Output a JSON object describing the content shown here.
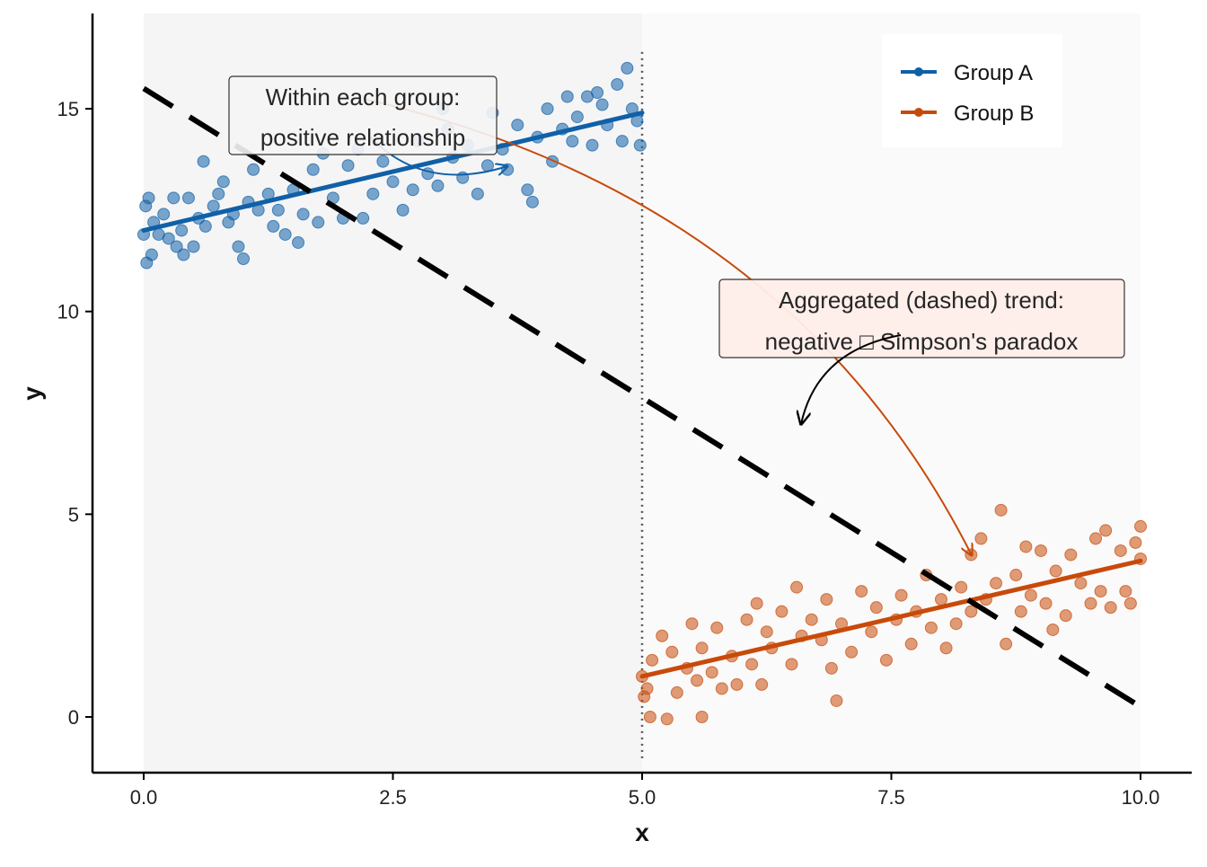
{
  "chart_data": {
    "type": "scatter",
    "title": "",
    "xlabel": "x",
    "ylabel": "y",
    "xlim": [
      -0.5,
      10.5
    ],
    "ylim": [
      -1.4,
      17.3
    ],
    "x_ticks": [
      0,
      2.5,
      5,
      7.5,
      10
    ],
    "x_tick_labels": [
      "0.0",
      "2.5",
      "5.0",
      "7.5",
      "10.0"
    ],
    "y_ticks": [
      0,
      5,
      10,
      15
    ],
    "y_tick_labels": [
      "0",
      "5",
      "10",
      "15"
    ],
    "grid": false,
    "legend_position": "top-right",
    "group_split_x": 5,
    "series": [
      {
        "name": "Group A",
        "color": "#1060a8",
        "fit": {
          "x": [
            0,
            5
          ],
          "y": [
            12.0,
            14.9
          ]
        },
        "points": [
          [
            0,
            11.9
          ],
          [
            0.02,
            12.6
          ],
          [
            0.03,
            11.2
          ],
          [
            0.05,
            12.8
          ],
          [
            0.08,
            11.4
          ],
          [
            0.1,
            12.2
          ],
          [
            0.15,
            11.9
          ],
          [
            0.2,
            12.4
          ],
          [
            0.25,
            11.8
          ],
          [
            0.3,
            12.8
          ],
          [
            0.33,
            11.6
          ],
          [
            0.38,
            12.0
          ],
          [
            0.4,
            11.4
          ],
          [
            0.45,
            12.8
          ],
          [
            0.5,
            11.6
          ],
          [
            0.55,
            12.3
          ],
          [
            0.6,
            13.7
          ],
          [
            0.62,
            12.1
          ],
          [
            0.7,
            12.6
          ],
          [
            0.75,
            12.9
          ],
          [
            0.8,
            13.2
          ],
          [
            0.85,
            12.2
          ],
          [
            0.9,
            12.4
          ],
          [
            0.95,
            11.6
          ],
          [
            1.0,
            11.3
          ],
          [
            1.05,
            12.7
          ],
          [
            1.1,
            13.5
          ],
          [
            1.15,
            12.5
          ],
          [
            1.25,
            12.9
          ],
          [
            1.3,
            12.1
          ],
          [
            1.35,
            12.5
          ],
          [
            1.42,
            11.9
          ],
          [
            1.5,
            13.0
          ],
          [
            1.55,
            11.7
          ],
          [
            1.6,
            12.4
          ],
          [
            1.7,
            13.5
          ],
          [
            1.75,
            12.2
          ],
          [
            1.8,
            13.9
          ],
          [
            1.9,
            12.8
          ],
          [
            2.0,
            12.3
          ],
          [
            2.05,
            13.6
          ],
          [
            2.15,
            14.0
          ],
          [
            2.2,
            12.3
          ],
          [
            2.3,
            12.9
          ],
          [
            2.4,
            13.7
          ],
          [
            2.5,
            13.2
          ],
          [
            2.6,
            12.5
          ],
          [
            2.7,
            13.0
          ],
          [
            2.75,
            14.2
          ],
          [
            2.85,
            13.4
          ],
          [
            2.95,
            13.1
          ],
          [
            3.0,
            15.0
          ],
          [
            3.05,
            14.5
          ],
          [
            3.1,
            13.8
          ],
          [
            3.2,
            13.3
          ],
          [
            3.25,
            14.1
          ],
          [
            3.35,
            12.9
          ],
          [
            3.45,
            13.6
          ],
          [
            3.5,
            14.9
          ],
          [
            3.6,
            14.0
          ],
          [
            3.65,
            13.5
          ],
          [
            3.75,
            14.6
          ],
          [
            3.85,
            13.0
          ],
          [
            3.9,
            12.7
          ],
          [
            3.95,
            14.3
          ],
          [
            4.05,
            15.0
          ],
          [
            4.1,
            13.7
          ],
          [
            4.2,
            14.5
          ],
          [
            4.25,
            15.3
          ],
          [
            4.3,
            14.2
          ],
          [
            4.35,
            14.8
          ],
          [
            4.45,
            15.3
          ],
          [
            4.5,
            14.1
          ],
          [
            4.55,
            15.4
          ],
          [
            4.6,
            15.1
          ],
          [
            4.65,
            14.6
          ],
          [
            4.75,
            15.6
          ],
          [
            4.8,
            14.2
          ],
          [
            4.85,
            16.0
          ],
          [
            4.9,
            15.0
          ],
          [
            4.95,
            14.7
          ],
          [
            4.98,
            14.1
          ]
        ]
      },
      {
        "name": "Group B",
        "color": "#c84a0a",
        "fit": {
          "x": [
            5,
            10
          ],
          "y": [
            1.0,
            3.85
          ]
        },
        "points": [
          [
            5.0,
            1.0
          ],
          [
            5.02,
            0.5
          ],
          [
            5.05,
            0.7
          ],
          [
            5.08,
            0.0
          ],
          [
            5.1,
            1.4
          ],
          [
            5.2,
            2.0
          ],
          [
            5.25,
            -0.05
          ],
          [
            5.3,
            1.6
          ],
          [
            5.35,
            0.6
          ],
          [
            5.45,
            1.2
          ],
          [
            5.5,
            2.3
          ],
          [
            5.55,
            0.9
          ],
          [
            5.6,
            1.7
          ],
          [
            5.6,
            0.0
          ],
          [
            5.7,
            1.1
          ],
          [
            5.75,
            2.2
          ],
          [
            5.8,
            0.7
          ],
          [
            5.9,
            1.5
          ],
          [
            5.95,
            0.8
          ],
          [
            6.05,
            2.4
          ],
          [
            6.1,
            1.3
          ],
          [
            6.15,
            2.8
          ],
          [
            6.2,
            0.8
          ],
          [
            6.25,
            2.1
          ],
          [
            6.3,
            1.7
          ],
          [
            6.4,
            2.6
          ],
          [
            6.5,
            1.3
          ],
          [
            6.55,
            3.2
          ],
          [
            6.6,
            2.0
          ],
          [
            6.7,
            2.4
          ],
          [
            6.8,
            1.9
          ],
          [
            6.85,
            2.9
          ],
          [
            6.9,
            1.2
          ],
          [
            6.95,
            0.4
          ],
          [
            7.0,
            2.3
          ],
          [
            7.1,
            1.6
          ],
          [
            7.2,
            3.1
          ],
          [
            7.3,
            2.1
          ],
          [
            7.35,
            2.7
          ],
          [
            7.45,
            1.4
          ],
          [
            7.55,
            2.4
          ],
          [
            7.6,
            3.0
          ],
          [
            7.7,
            1.8
          ],
          [
            7.75,
            2.6
          ],
          [
            7.85,
            3.5
          ],
          [
            7.9,
            2.2
          ],
          [
            8.0,
            2.9
          ],
          [
            8.05,
            1.7
          ],
          [
            8.15,
            2.3
          ],
          [
            8.2,
            3.2
          ],
          [
            8.3,
            2.6
          ],
          [
            8.3,
            4.0
          ],
          [
            8.4,
            4.4
          ],
          [
            8.45,
            2.9
          ],
          [
            8.55,
            3.3
          ],
          [
            8.6,
            5.1
          ],
          [
            8.65,
            1.8
          ],
          [
            8.75,
            3.5
          ],
          [
            8.8,
            2.6
          ],
          [
            8.85,
            4.2
          ],
          [
            8.9,
            3.0
          ],
          [
            9.0,
            4.1
          ],
          [
            9.05,
            2.8
          ],
          [
            9.12,
            2.15
          ],
          [
            9.15,
            3.6
          ],
          [
            9.25,
            2.5
          ],
          [
            9.3,
            4.0
          ],
          [
            9.4,
            3.3
          ],
          [
            9.5,
            2.8
          ],
          [
            9.55,
            4.4
          ],
          [
            9.6,
            3.1
          ],
          [
            9.65,
            4.6
          ],
          [
            9.7,
            2.7
          ],
          [
            9.8,
            4.1
          ],
          [
            9.85,
            3.1
          ],
          [
            9.9,
            2.8
          ],
          [
            9.95,
            4.3
          ],
          [
            10.0,
            4.7
          ],
          [
            10.0,
            3.9
          ]
        ]
      }
    ],
    "aggregate_fit": {
      "name": "Aggregated trend",
      "x": [
        0,
        10
      ],
      "y": [
        15.5,
        0.25
      ],
      "color": "#000000",
      "style": "dashed"
    },
    "annotations": [
      {
        "id": "within",
        "lines": [
          "Within each group:",
          "positive relationship"
        ],
        "fill": "#f5f5f5"
      },
      {
        "id": "aggregated",
        "lines": [
          "Aggregated (dashed) trend:",
          "negative □ Simpson's paradox"
        ],
        "fill": "#ffeeea"
      }
    ]
  }
}
